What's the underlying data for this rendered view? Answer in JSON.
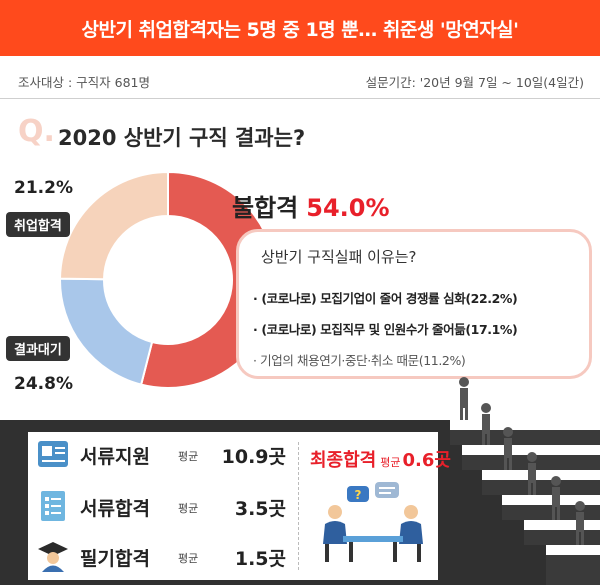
{
  "header": {
    "title": "상반기 취업합격자는 5명 중 1명 뿐… 취준생 '망연자실'",
    "survey_target": "조사대상 :  구직자 681명",
    "survey_period": "설문기간: '20년 9월 7일 ~ 10일(4일간)"
  },
  "question": {
    "mark": "Q.",
    "text": "2020 상반기 구직 결과는?"
  },
  "chart_data": {
    "type": "pie",
    "title": "2020 상반기 구직 결과는?",
    "categories": [
      "불합격",
      "취업합격",
      "결과대기"
    ],
    "values": [
      54.0,
      21.2,
      24.8
    ],
    "value_labels": [
      "54.0%",
      "21.2%",
      "24.8%"
    ],
    "colors": [
      "#e45a52",
      "#a9c7ea",
      "#f6d3bb"
    ]
  },
  "labels": {
    "fail_label": "불합격",
    "fail_pct": "54.0%",
    "employed_label": "취업합격",
    "employed_pct": "21.2%",
    "pending_label": "결과대기",
    "pending_pct": "24.8%"
  },
  "reasons": {
    "question": "상반기 구직실패 이유는?",
    "items": [
      "(코로나로) 모집기업이 줄어 경쟁률 심화(22.2%)",
      "(코로나로) 모집직무 및 인원수가 줄어듦(17.1%)",
      "기업의 채용연기·중단·취소 때문(11.2%)"
    ]
  },
  "stats": {
    "items": [
      {
        "label": "서류지원",
        "avg": "평균",
        "value": "10.9곳",
        "icon": "application-form-icon"
      },
      {
        "label": "서류합격",
        "avg": "평균",
        "value": "3.5곳",
        "icon": "checklist-icon"
      },
      {
        "label": "필기합격",
        "avg": "평균",
        "value": "1.5곳",
        "icon": "graduate-icon"
      }
    ],
    "final": {
      "label": "최종합격",
      "avg": "평균",
      "value": "0.6곳",
      "icon": "interview-icon"
    }
  },
  "colors": {
    "banner": "#ff4a1c",
    "accent_red": "#e8202a",
    "dark_band": "#303030"
  }
}
